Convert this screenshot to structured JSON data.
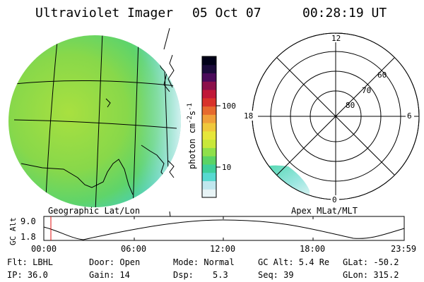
{
  "header": {
    "title": "Ultraviolet Imager",
    "date": "05 Oct 07",
    "time": "00:28:19 UT"
  },
  "geo_panel": {
    "label": "Geographic Lat/Lon"
  },
  "colorbar": {
    "unit_main": "photon cm",
    "unit_exp1": "-2",
    "unit_mid": "s",
    "unit_exp2": "-1",
    "tick_100": "100",
    "tick_10": "10",
    "colors": [
      "#e8f4f6",
      "#bfe7ee",
      "#57d9d0",
      "#3fcf9a",
      "#5bd465",
      "#8fe04a",
      "#c8e83a",
      "#e6e63a",
      "#f0c83c",
      "#f0a03a",
      "#e66a2e",
      "#d8322a",
      "#c01838",
      "#8c0f4a",
      "#4a0a5a",
      "#1a0a3a",
      "#000018"
    ]
  },
  "polar_panel": {
    "label": "Apex MLat/MLT",
    "mlt_12": "12",
    "mlt_18": "18",
    "mlt_6": "6",
    "mlt_0": "0",
    "lat_60": "60",
    "lat_70": "70",
    "lat_80": "80"
  },
  "altitude_plot": {
    "ylabel": "GC Alt",
    "y_top": "9.0",
    "y_bottom": "1.8",
    "x_ticks": [
      "00:00",
      "06:00",
      "12:00",
      "18:00",
      "23:59"
    ]
  },
  "info": {
    "flt": "Flt: LBHL",
    "door": "Door: Open",
    "mode": "Mode: Normal",
    "gc_alt": "GC Alt: 5.4 Re",
    "glat": "GLat: -50.2",
    "ip": "IP: 36.0",
    "gain": "Gain: 14",
    "dsp_label": "Dsp:",
    "dsp_value": "5.3",
    "seq": "Seq: 39",
    "glon": "GLon: 315.2"
  }
}
